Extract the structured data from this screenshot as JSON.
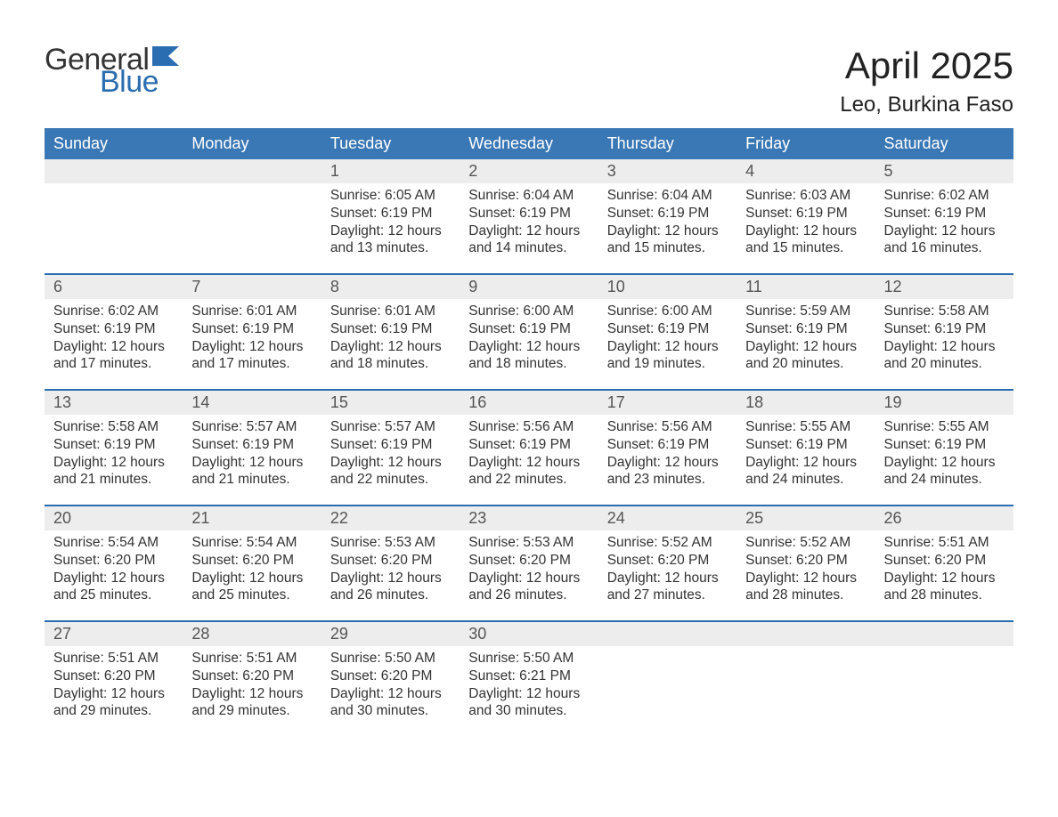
{
  "brand": {
    "word1": "General",
    "word2": "Blue",
    "flag_color": "#2a6db0",
    "text_color": "#333333"
  },
  "title": "April 2025",
  "location": "Leo, Burkina Faso",
  "colors": {
    "header_bg": "#3a78b5",
    "header_text": "#ffffff",
    "daynum_bg": "#ededed",
    "separator": "#2a6db0",
    "body_text": "#333333",
    "background": "#ffffff"
  },
  "fonts": {
    "title_size_pt": 32,
    "location_size_pt": 18,
    "header_size_pt": 14,
    "body_size_pt": 12
  },
  "weekdays": [
    "Sunday",
    "Monday",
    "Tuesday",
    "Wednesday",
    "Thursday",
    "Friday",
    "Saturday"
  ],
  "weeks": [
    [
      null,
      null,
      {
        "n": "1",
        "sunrise": "Sunrise: 6:05 AM",
        "sunset": "Sunset: 6:19 PM",
        "dl1": "Daylight: 12 hours",
        "dl2": "and 13 minutes."
      },
      {
        "n": "2",
        "sunrise": "Sunrise: 6:04 AM",
        "sunset": "Sunset: 6:19 PM",
        "dl1": "Daylight: 12 hours",
        "dl2": "and 14 minutes."
      },
      {
        "n": "3",
        "sunrise": "Sunrise: 6:04 AM",
        "sunset": "Sunset: 6:19 PM",
        "dl1": "Daylight: 12 hours",
        "dl2": "and 15 minutes."
      },
      {
        "n": "4",
        "sunrise": "Sunrise: 6:03 AM",
        "sunset": "Sunset: 6:19 PM",
        "dl1": "Daylight: 12 hours",
        "dl2": "and 15 minutes."
      },
      {
        "n": "5",
        "sunrise": "Sunrise: 6:02 AM",
        "sunset": "Sunset: 6:19 PM",
        "dl1": "Daylight: 12 hours",
        "dl2": "and 16 minutes."
      }
    ],
    [
      {
        "n": "6",
        "sunrise": "Sunrise: 6:02 AM",
        "sunset": "Sunset: 6:19 PM",
        "dl1": "Daylight: 12 hours",
        "dl2": "and 17 minutes."
      },
      {
        "n": "7",
        "sunrise": "Sunrise: 6:01 AM",
        "sunset": "Sunset: 6:19 PM",
        "dl1": "Daylight: 12 hours",
        "dl2": "and 17 minutes."
      },
      {
        "n": "8",
        "sunrise": "Sunrise: 6:01 AM",
        "sunset": "Sunset: 6:19 PM",
        "dl1": "Daylight: 12 hours",
        "dl2": "and 18 minutes."
      },
      {
        "n": "9",
        "sunrise": "Sunrise: 6:00 AM",
        "sunset": "Sunset: 6:19 PM",
        "dl1": "Daylight: 12 hours",
        "dl2": "and 18 minutes."
      },
      {
        "n": "10",
        "sunrise": "Sunrise: 6:00 AM",
        "sunset": "Sunset: 6:19 PM",
        "dl1": "Daylight: 12 hours",
        "dl2": "and 19 minutes."
      },
      {
        "n": "11",
        "sunrise": "Sunrise: 5:59 AM",
        "sunset": "Sunset: 6:19 PM",
        "dl1": "Daylight: 12 hours",
        "dl2": "and 20 minutes."
      },
      {
        "n": "12",
        "sunrise": "Sunrise: 5:58 AM",
        "sunset": "Sunset: 6:19 PM",
        "dl1": "Daylight: 12 hours",
        "dl2": "and 20 minutes."
      }
    ],
    [
      {
        "n": "13",
        "sunrise": "Sunrise: 5:58 AM",
        "sunset": "Sunset: 6:19 PM",
        "dl1": "Daylight: 12 hours",
        "dl2": "and 21 minutes."
      },
      {
        "n": "14",
        "sunrise": "Sunrise: 5:57 AM",
        "sunset": "Sunset: 6:19 PM",
        "dl1": "Daylight: 12 hours",
        "dl2": "and 21 minutes."
      },
      {
        "n": "15",
        "sunrise": "Sunrise: 5:57 AM",
        "sunset": "Sunset: 6:19 PM",
        "dl1": "Daylight: 12 hours",
        "dl2": "and 22 minutes."
      },
      {
        "n": "16",
        "sunrise": "Sunrise: 5:56 AM",
        "sunset": "Sunset: 6:19 PM",
        "dl1": "Daylight: 12 hours",
        "dl2": "and 22 minutes."
      },
      {
        "n": "17",
        "sunrise": "Sunrise: 5:56 AM",
        "sunset": "Sunset: 6:19 PM",
        "dl1": "Daylight: 12 hours",
        "dl2": "and 23 minutes."
      },
      {
        "n": "18",
        "sunrise": "Sunrise: 5:55 AM",
        "sunset": "Sunset: 6:19 PM",
        "dl1": "Daylight: 12 hours",
        "dl2": "and 24 minutes."
      },
      {
        "n": "19",
        "sunrise": "Sunrise: 5:55 AM",
        "sunset": "Sunset: 6:19 PM",
        "dl1": "Daylight: 12 hours",
        "dl2": "and 24 minutes."
      }
    ],
    [
      {
        "n": "20",
        "sunrise": "Sunrise: 5:54 AM",
        "sunset": "Sunset: 6:20 PM",
        "dl1": "Daylight: 12 hours",
        "dl2": "and 25 minutes."
      },
      {
        "n": "21",
        "sunrise": "Sunrise: 5:54 AM",
        "sunset": "Sunset: 6:20 PM",
        "dl1": "Daylight: 12 hours",
        "dl2": "and 25 minutes."
      },
      {
        "n": "22",
        "sunrise": "Sunrise: 5:53 AM",
        "sunset": "Sunset: 6:20 PM",
        "dl1": "Daylight: 12 hours",
        "dl2": "and 26 minutes."
      },
      {
        "n": "23",
        "sunrise": "Sunrise: 5:53 AM",
        "sunset": "Sunset: 6:20 PM",
        "dl1": "Daylight: 12 hours",
        "dl2": "and 26 minutes."
      },
      {
        "n": "24",
        "sunrise": "Sunrise: 5:52 AM",
        "sunset": "Sunset: 6:20 PM",
        "dl1": "Daylight: 12 hours",
        "dl2": "and 27 minutes."
      },
      {
        "n": "25",
        "sunrise": "Sunrise: 5:52 AM",
        "sunset": "Sunset: 6:20 PM",
        "dl1": "Daylight: 12 hours",
        "dl2": "and 28 minutes."
      },
      {
        "n": "26",
        "sunrise": "Sunrise: 5:51 AM",
        "sunset": "Sunset: 6:20 PM",
        "dl1": "Daylight: 12 hours",
        "dl2": "and 28 minutes."
      }
    ],
    [
      {
        "n": "27",
        "sunrise": "Sunrise: 5:51 AM",
        "sunset": "Sunset: 6:20 PM",
        "dl1": "Daylight: 12 hours",
        "dl2": "and 29 minutes."
      },
      {
        "n": "28",
        "sunrise": "Sunrise: 5:51 AM",
        "sunset": "Sunset: 6:20 PM",
        "dl1": "Daylight: 12 hours",
        "dl2": "and 29 minutes."
      },
      {
        "n": "29",
        "sunrise": "Sunrise: 5:50 AM",
        "sunset": "Sunset: 6:20 PM",
        "dl1": "Daylight: 12 hours",
        "dl2": "and 30 minutes."
      },
      {
        "n": "30",
        "sunrise": "Sunrise: 5:50 AM",
        "sunset": "Sunset: 6:21 PM",
        "dl1": "Daylight: 12 hours",
        "dl2": "and 30 minutes."
      },
      null,
      null,
      null
    ]
  ]
}
